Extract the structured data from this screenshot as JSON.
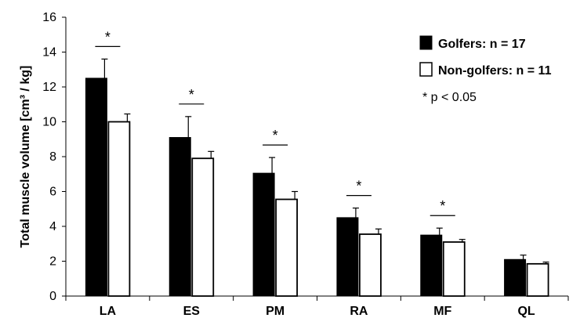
{
  "chart_data": {
    "type": "bar",
    "categories": [
      "LA",
      "ES",
      "PM",
      "RA",
      "MF",
      "QL"
    ],
    "series": [
      {
        "name": "Golfers: n = 17",
        "color": "#000000",
        "values": [
          12.5,
          9.1,
          7.05,
          4.5,
          3.5,
          2.1
        ],
        "errors": [
          1.1,
          1.2,
          0.9,
          0.55,
          0.4,
          0.25
        ]
      },
      {
        "name": "Non-golfers: n = 11",
        "color": "#ffffff",
        "values": [
          10.0,
          7.9,
          5.55,
          3.55,
          3.1,
          1.85
        ],
        "errors": [
          0.45,
          0.4,
          0.45,
          0.3,
          0.15,
          0.1
        ]
      }
    ],
    "ylabel": "Total muscle volume [cm³ / kg]",
    "ylim": [
      0,
      16
    ],
    "yticks": [
      0,
      2,
      4,
      6,
      8,
      10,
      12,
      14,
      16
    ],
    "significance": [
      true,
      true,
      true,
      true,
      true,
      false
    ],
    "significance_marker": "*",
    "note": "* p < 0.05",
    "legend_position": "top-right",
    "grid": false
  }
}
